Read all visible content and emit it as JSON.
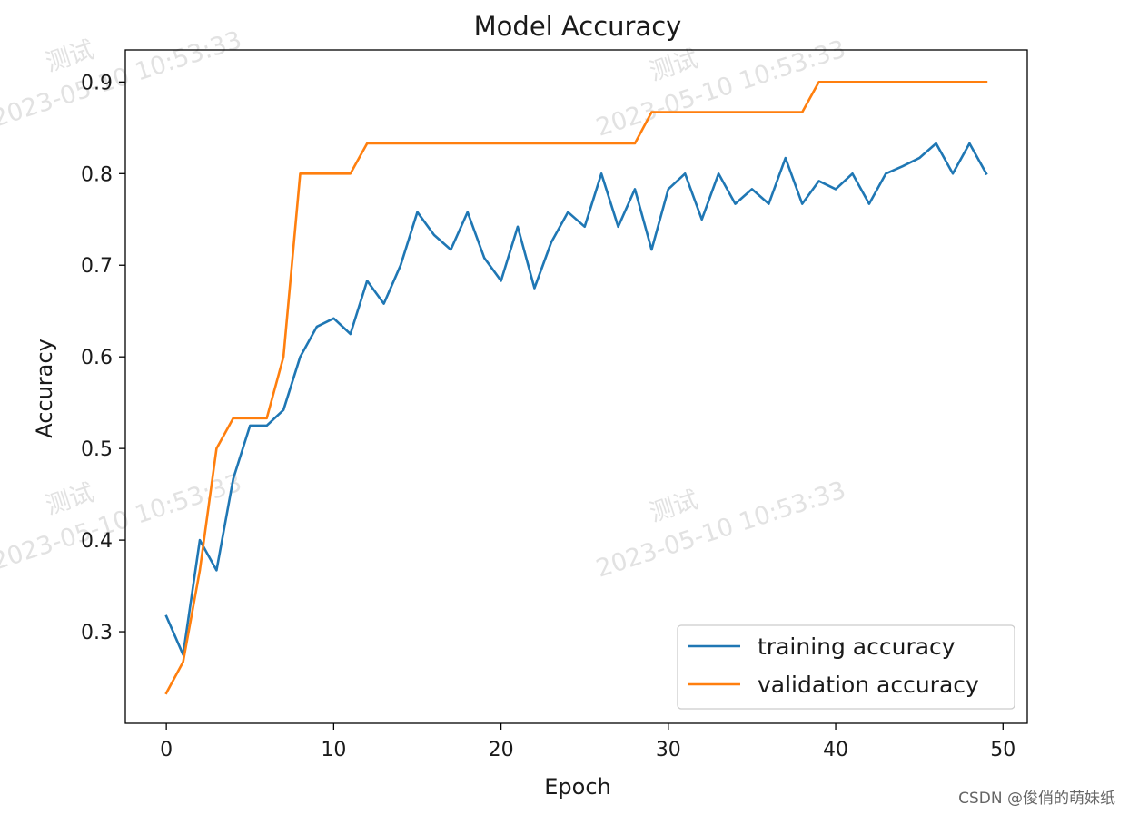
{
  "chart_data": {
    "type": "line",
    "title": "Model Accuracy",
    "xlabel": "Epoch",
    "ylabel": "Accuracy",
    "xlim": [
      -2.45,
      51.45
    ],
    "ylim": [
      0.2,
      0.935
    ],
    "xticks": [
      0,
      10,
      20,
      30,
      40,
      50
    ],
    "xtick_labels": [
      "0",
      "10",
      "20",
      "30",
      "40",
      "50"
    ],
    "yticks": [
      0.3,
      0.4,
      0.5,
      0.6,
      0.7,
      0.8,
      0.9
    ],
    "ytick_labels": [
      "0.3",
      "0.4",
      "0.5",
      "0.6",
      "0.7",
      "0.8",
      "0.9"
    ],
    "grid": false,
    "legend_position": "bottom-right",
    "x": [
      0,
      1,
      2,
      3,
      4,
      5,
      6,
      7,
      8,
      9,
      10,
      11,
      12,
      13,
      14,
      15,
      16,
      17,
      18,
      19,
      20,
      21,
      22,
      23,
      24,
      25,
      26,
      27,
      28,
      29,
      30,
      31,
      32,
      33,
      34,
      35,
      36,
      37,
      38,
      39,
      40,
      41,
      42,
      43,
      44,
      45,
      46,
      47,
      48,
      49
    ],
    "series": [
      {
        "name": "training accuracy",
        "color": "#1f77b4",
        "values": [
          0.317,
          0.275,
          0.4,
          0.367,
          0.467,
          0.525,
          0.525,
          0.542,
          0.6,
          0.633,
          0.642,
          0.625,
          0.683,
          0.658,
          0.7,
          0.758,
          0.733,
          0.717,
          0.758,
          0.708,
          0.683,
          0.742,
          0.675,
          0.725,
          0.758,
          0.742,
          0.8,
          0.742,
          0.783,
          0.717,
          0.783,
          0.8,
          0.75,
          0.8,
          0.767,
          0.783,
          0.767,
          0.817,
          0.767,
          0.792,
          0.783,
          0.8,
          0.767,
          0.8,
          0.808,
          0.817,
          0.833,
          0.8,
          0.833,
          0.8
        ]
      },
      {
        "name": "validation accuracy",
        "color": "#ff7f0e",
        "values": [
          0.233,
          0.267,
          0.367,
          0.5,
          0.533,
          0.533,
          0.533,
          0.6,
          0.8,
          0.8,
          0.8,
          0.8,
          0.833,
          0.833,
          0.833,
          0.833,
          0.833,
          0.833,
          0.833,
          0.833,
          0.833,
          0.833,
          0.833,
          0.833,
          0.833,
          0.833,
          0.833,
          0.833,
          0.833,
          0.867,
          0.867,
          0.867,
          0.867,
          0.867,
          0.867,
          0.867,
          0.867,
          0.867,
          0.867,
          0.9,
          0.9,
          0.9,
          0.9,
          0.9,
          0.9,
          0.9,
          0.9,
          0.9,
          0.9,
          0.9
        ]
      }
    ]
  },
  "watermark": {
    "label": "测试",
    "timestamp": "2023-05-10 10:53:33"
  },
  "credit": "CSDN @俊俏的萌妹纸"
}
